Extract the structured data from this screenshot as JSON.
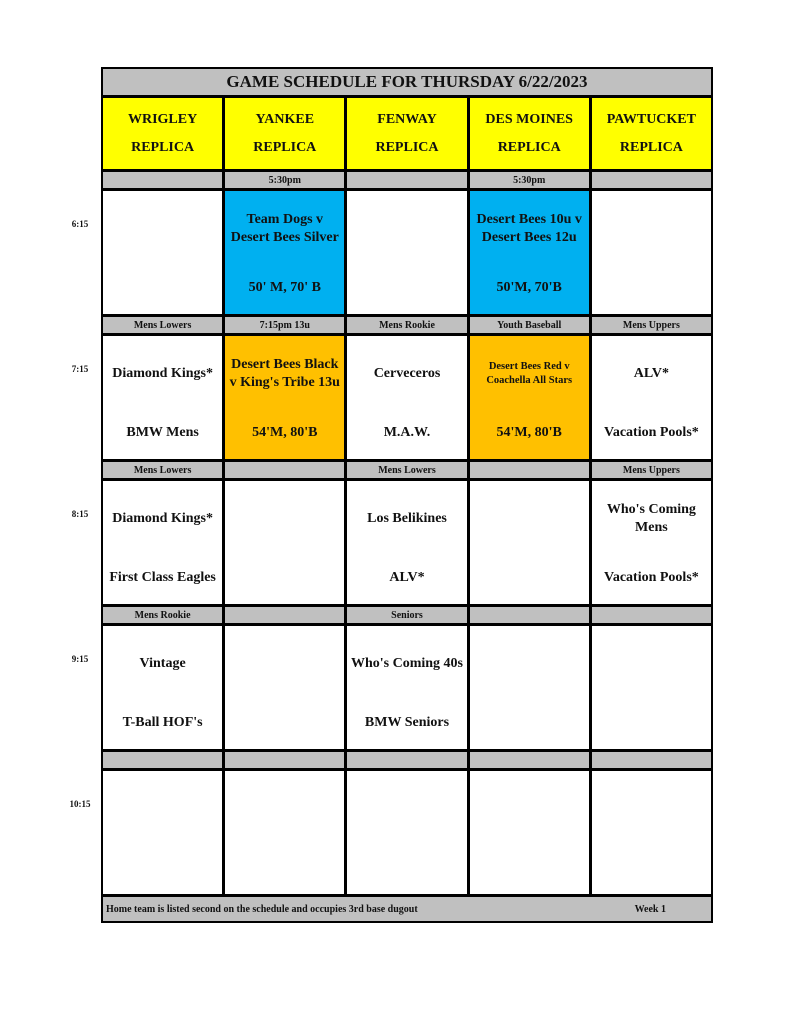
{
  "title": "GAME SCHEDULE FOR THURSDAY 6/22/2023",
  "fields": [
    {
      "name": "WRIGLEY",
      "sub": "REPLICA"
    },
    {
      "name": "YANKEE",
      "sub": "REPLICA"
    },
    {
      "name": "FENWAY",
      "sub": "REPLICA"
    },
    {
      "name": "DES MOINES",
      "sub": "REPLICA"
    },
    {
      "name": "PAWTUCKET",
      "sub": "REPLICA"
    }
  ],
  "colors": {
    "header": "#ffff00",
    "label": "#c0c0c0",
    "blue": "#00b0f0",
    "orange": "#ffc000",
    "white": "#ffffff"
  },
  "rows": [
    {
      "time": "6:15",
      "labels": [
        "",
        "5:30pm",
        "",
        "5:30pm",
        ""
      ],
      "cells": [
        {
          "top": "",
          "bottom": "",
          "color": "white"
        },
        {
          "top": "Team Dogs v Desert Bees Silver",
          "bottom": "50' M, 70' B",
          "color": "blue"
        },
        {
          "top": "",
          "bottom": "",
          "color": "white"
        },
        {
          "top": "Desert Bees 10u v Desert Bees 12u",
          "bottom": "50'M, 70'B",
          "color": "blue"
        },
        {
          "top": "",
          "bottom": "",
          "color": "white"
        }
      ]
    },
    {
      "time": "7:15",
      "labels": [
        "Mens Lowers",
        "7:15pm 13u",
        "Mens Rookie",
        "Youth Baseball",
        "Mens Uppers"
      ],
      "cells": [
        {
          "top": "Diamond Kings*",
          "bottom": "BMW Mens",
          "color": "white"
        },
        {
          "top": "Desert Bees Black v King's Tribe 13u",
          "bottom": "54'M, 80'B",
          "color": "orange"
        },
        {
          "top": "Cerveceros",
          "bottom": "M.A.W.",
          "color": "white"
        },
        {
          "top": "Desert Bees Red v Coachella All Stars",
          "bottom": "54'M, 80'B",
          "color": "orange",
          "small": true
        },
        {
          "top": "ALV*",
          "bottom": "Vacation Pools*",
          "color": "white"
        }
      ]
    },
    {
      "time": "8:15",
      "labels": [
        "Mens Lowers",
        "",
        "Mens Lowers",
        "",
        "Mens Uppers"
      ],
      "cells": [
        {
          "top": "Diamond Kings*",
          "bottom": "First Class Eagles",
          "color": "white"
        },
        {
          "top": "",
          "bottom": "",
          "color": "white"
        },
        {
          "top": "Los Belikines",
          "bottom": "ALV*",
          "color": "white"
        },
        {
          "top": "",
          "bottom": "",
          "color": "white"
        },
        {
          "top": "Who's Coming Mens",
          "bottom": "Vacation Pools*",
          "color": "white"
        }
      ]
    },
    {
      "time": "9:15",
      "labels": [
        "Mens Rookie",
        "",
        "Seniors",
        "",
        ""
      ],
      "cells": [
        {
          "top": "Vintage",
          "bottom": "T-Ball HOF's",
          "color": "white"
        },
        {
          "top": "",
          "bottom": "",
          "color": "white"
        },
        {
          "top": "Who's Coming 40s",
          "bottom": "BMW Seniors",
          "color": "white"
        },
        {
          "top": "",
          "bottom": "",
          "color": "white"
        },
        {
          "top": "",
          "bottom": "",
          "color": "white"
        }
      ]
    },
    {
      "time": "10:15",
      "labels": [
        "",
        "",
        "",
        "",
        ""
      ],
      "cells": [
        {
          "top": "",
          "bottom": "",
          "color": "white"
        },
        {
          "top": "",
          "bottom": "",
          "color": "white"
        },
        {
          "top": "",
          "bottom": "",
          "color": "white"
        },
        {
          "top": "",
          "bottom": "",
          "color": "white"
        },
        {
          "top": "",
          "bottom": "",
          "color": "white"
        }
      ]
    }
  ],
  "footer": {
    "note": "Home team is listed second on the schedule and occupies 3rd base dugout",
    "week": "Week 1"
  }
}
